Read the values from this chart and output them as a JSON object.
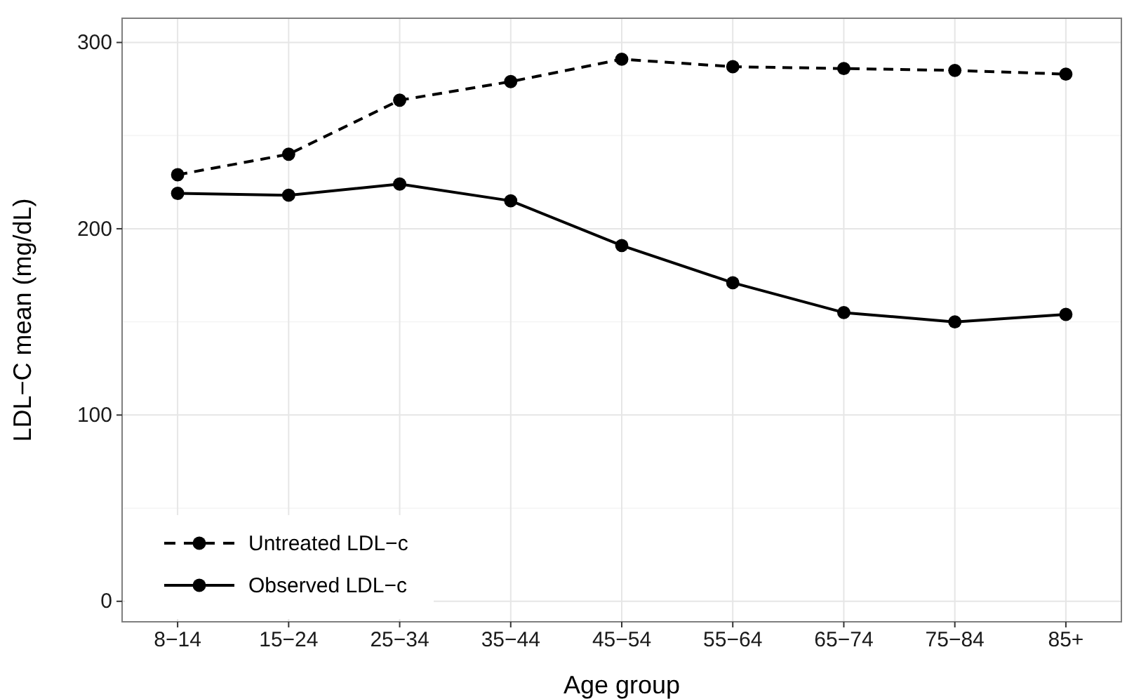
{
  "chart_data": {
    "type": "line",
    "xlabel": "Age group",
    "ylabel": "LDL−C mean (mg/dL)",
    "categories": [
      "8−14",
      "15−24",
      "25−34",
      "35−44",
      "45−54",
      "55−64",
      "65−74",
      "75−84",
      "85+"
    ],
    "series": [
      {
        "name": "Untreated LDL−c",
        "color": "#000000",
        "line_style": "dashed",
        "values": [
          229,
          240,
          269,
          279,
          291,
          287,
          286,
          285,
          283
        ]
      },
      {
        "name": "Observed LDL−c",
        "color": "#000000",
        "line_style": "solid",
        "values": [
          219,
          218,
          224,
          215,
          191,
          171,
          155,
          150,
          154
        ]
      }
    ],
    "ylim": [
      -11,
      313
    ],
    "yticks": [
      0,
      100,
      200,
      300
    ],
    "grid": true,
    "legend": "bottom left",
    "marker": "circle"
  }
}
